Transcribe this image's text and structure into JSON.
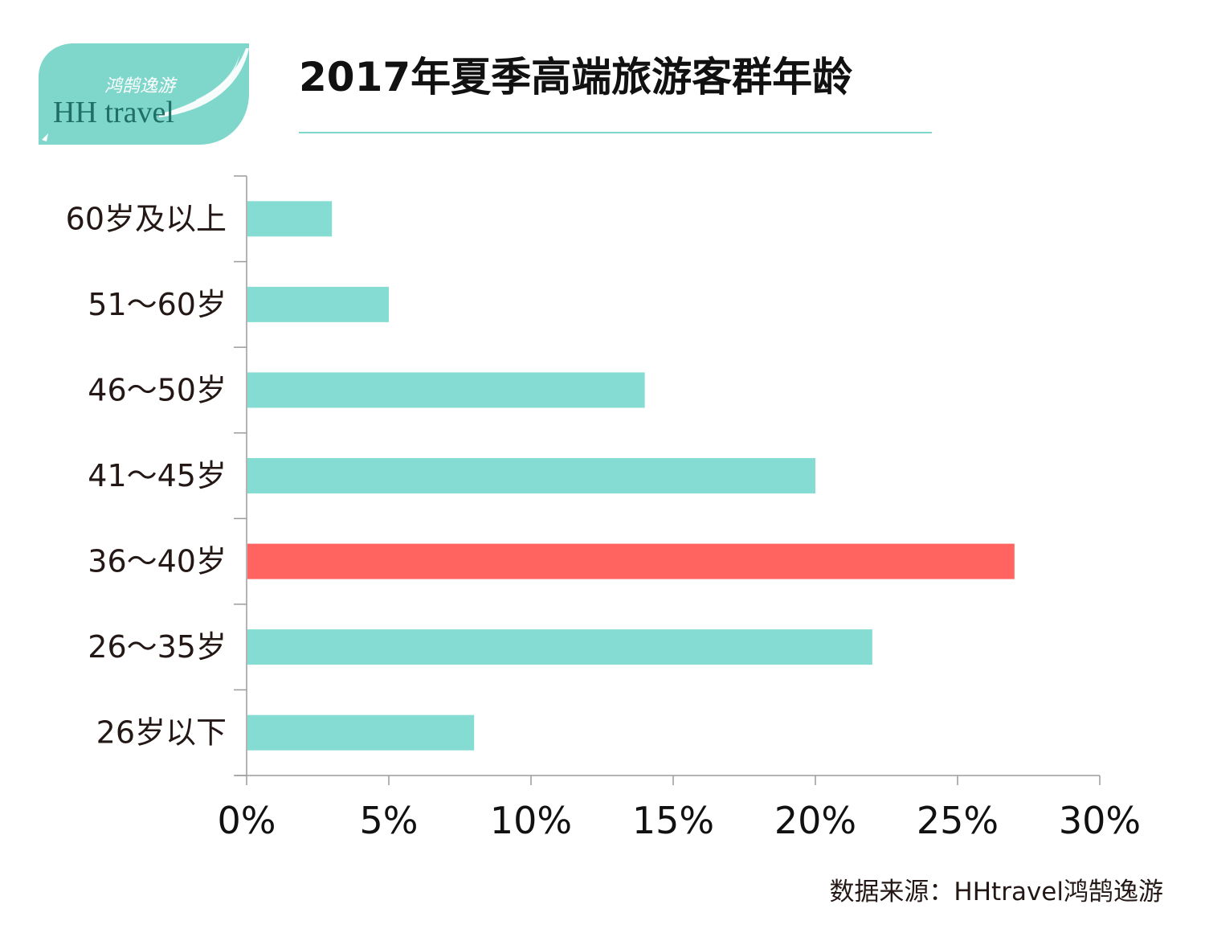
{
  "logo": {
    "chinese": "鸿鹄逸游",
    "latin": "HH travel"
  },
  "title": "2017年夏季高端旅游客群年龄",
  "source": "数据来源：HHtravel鸿鹄逸游",
  "colors": {
    "bar": "#85dcd2",
    "highlight": "#ff6461",
    "axis": "#9b9b9b",
    "accent": "#7ed6cc"
  },
  "chart_data": {
    "type": "bar",
    "orientation": "horizontal",
    "categories": [
      "60岁及以上",
      "51～60岁",
      "46～50岁",
      "41～45岁",
      "36～40岁",
      "26～35岁",
      "26岁以下"
    ],
    "values": [
      3,
      5,
      14,
      20,
      27,
      22,
      8
    ],
    "highlight_category": "36～40岁",
    "xlim": [
      0,
      30
    ],
    "xticks": [
      0,
      5,
      10,
      15,
      20,
      25,
      30
    ],
    "xtick_labels": [
      "0%",
      "5%",
      "10%",
      "15%",
      "20%",
      "25%",
      "30%"
    ],
    "grid": false
  }
}
